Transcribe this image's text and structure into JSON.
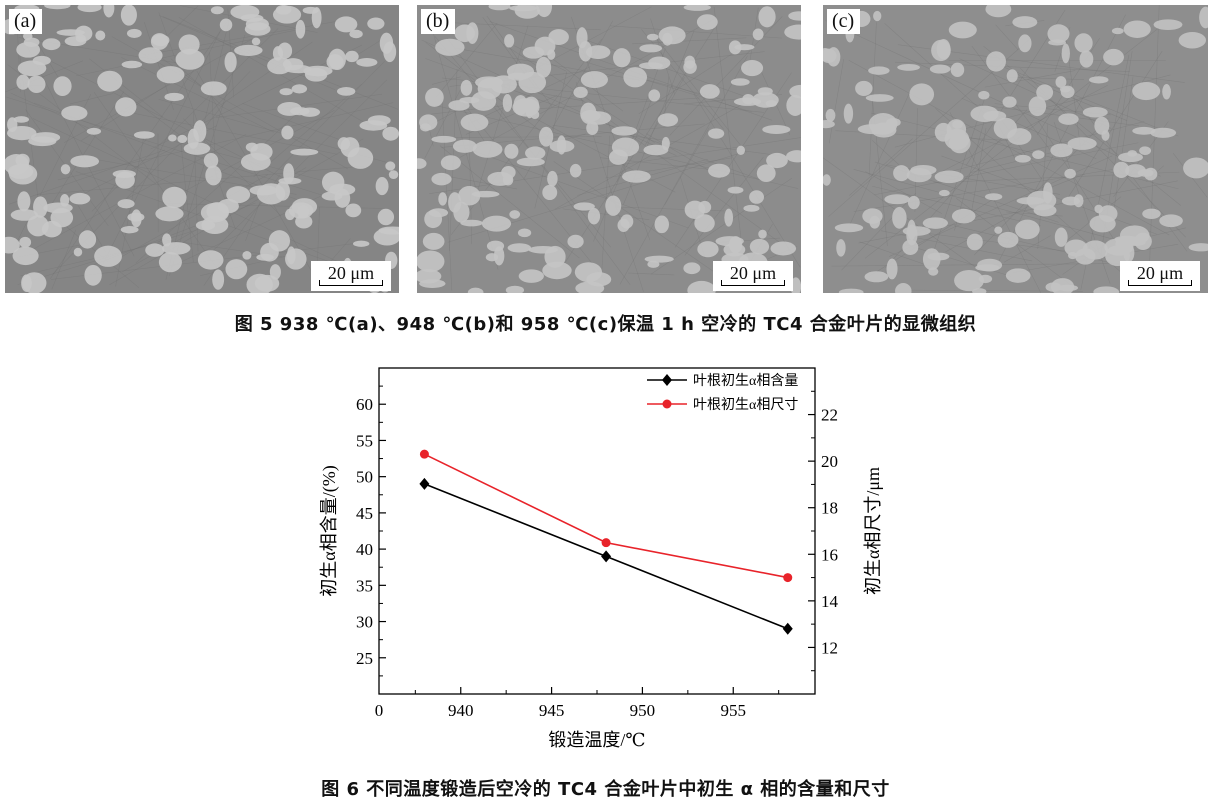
{
  "micrographs": [
    {
      "label": "(a)",
      "scale": "20 μm",
      "bg": "#858585",
      "grain": "#c8c8c8"
    },
    {
      "label": "(b)",
      "scale": "20 μm",
      "bg": "#8c8c8c",
      "grain": "#c4c4c4"
    },
    {
      "label": "(c)",
      "scale": "20 μm",
      "bg": "#8e8e8e",
      "grain": "#c2c2c2"
    }
  ],
  "fig5_caption": "图 5   938 ℃(a)、948 ℃(b)和 958 ℃(c)保温 1 h 空冷的 TC4 合金叶片的显微组织",
  "fig6_caption": "图 6   不同温度锻造后空冷的 TC4 合金叶片中初生 α 相的含量和尺寸",
  "chart_data": {
    "type": "line",
    "xlabel": "锻造温度/℃",
    "ylabel_left": "初生α相含量/(%)",
    "ylabel_right": "初生α相尺寸/μm",
    "x_ticks": [
      940,
      945,
      950,
      955
    ],
    "x_zero_label": "0",
    "xlim": [
      935.5,
      959.5
    ],
    "left_ticks": [
      25,
      30,
      35,
      40,
      45,
      50,
      55,
      60
    ],
    "left_ylim": [
      20,
      65
    ],
    "right_ticks": [
      12,
      14,
      16,
      18,
      20,
      22
    ],
    "right_ylim": [
      10,
      24
    ],
    "legend_position": "top-right",
    "series": [
      {
        "name": "叶根初生α相含量",
        "axis": "left",
        "color": "#000000",
        "marker": "diamond",
        "x": [
          938,
          948,
          958
        ],
        "y": [
          49,
          39,
          29
        ]
      },
      {
        "name": "叶根初生α相尺寸",
        "axis": "right",
        "color": "#e8232a",
        "marker": "circle",
        "x": [
          938,
          948,
          958
        ],
        "y": [
          20.3,
          16.5,
          15
        ]
      }
    ]
  }
}
